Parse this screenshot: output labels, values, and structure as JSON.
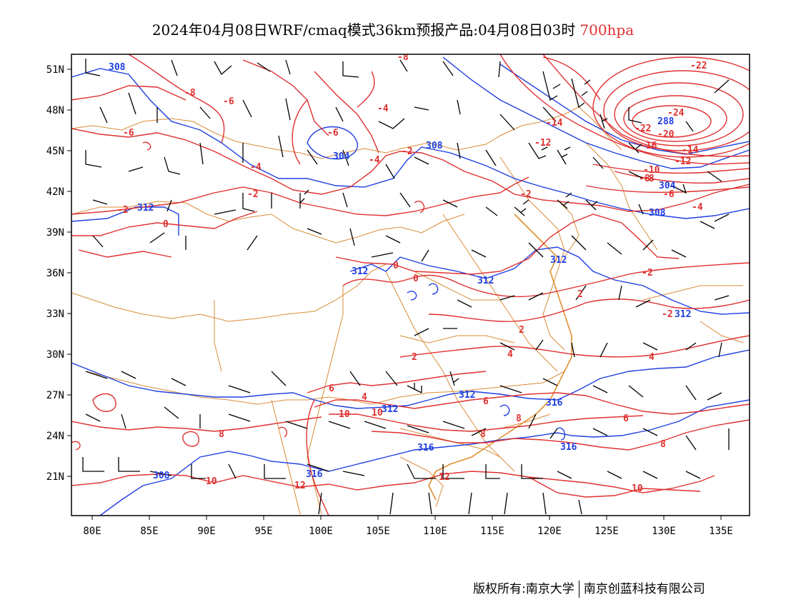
{
  "title": {
    "main": "2024年04月08日WRF/cmaq模式36km预报产品:04月08日03时",
    "level": "700hpa"
  },
  "colors": {
    "height_contour": "#2040e0",
    "temperature_contour": "#e03030",
    "boundary": "#d98c3a",
    "wind_barb": "#000000"
  },
  "axes": {
    "lon_labels": [
      "80E",
      "85E",
      "90E",
      "95E",
      "100E",
      "105E",
      "110E",
      "115E",
      "120E",
      "125E",
      "130E",
      "135E"
    ],
    "lat_labels": [
      "51N",
      "48N",
      "45N",
      "42N",
      "39N",
      "36N",
      "33N",
      "30N",
      "27N",
      "24N",
      "21N"
    ]
  },
  "height_labels": [
    "308",
    "304",
    "308",
    "312",
    "312",
    "312",
    "312",
    "312",
    "312",
    "312",
    "316",
    "316",
    "316",
    "316",
    "308",
    "304",
    "308",
    "288"
  ],
  "temp_labels": [
    "-8",
    "-6",
    "-6",
    "-8",
    "-4",
    "-6",
    "-4",
    "-2",
    "-4",
    "-2",
    "-2",
    "0",
    "0",
    "0",
    "2",
    "2",
    "4",
    "4",
    "6",
    "6",
    "8",
    "8",
    "8",
    "10",
    "10",
    "10",
    "12",
    "12",
    "-14",
    "-12",
    "-22",
    "-24",
    "-22",
    "-20",
    "-16",
    "-14",
    "-12",
    "-10",
    "-8",
    "-6",
    "-4",
    "-2",
    "-2",
    "2",
    "4",
    "6",
    "8",
    "10",
    "-8",
    "-2"
  ],
  "footer": {
    "left": "版权所有:南京大学",
    "right": "南京创蓝科技有限公司"
  }
}
